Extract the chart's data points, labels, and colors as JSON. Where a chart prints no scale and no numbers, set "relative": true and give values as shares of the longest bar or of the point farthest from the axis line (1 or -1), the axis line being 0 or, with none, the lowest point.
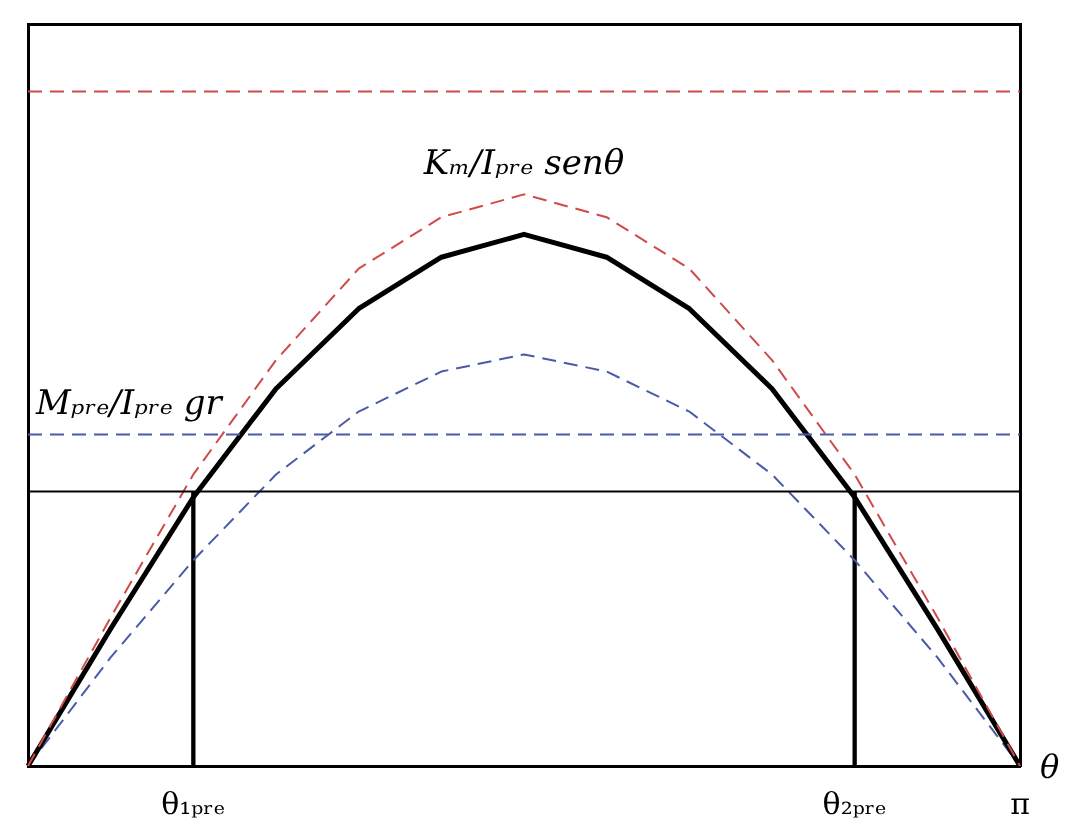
{
  "chart_data": {
    "type": "line",
    "relative": true,
    "xlabel": "θ",
    "categories": [
      null,
      null,
      "θ₁ₚᵣₑ",
      null,
      null,
      null,
      null,
      null,
      null,
      null,
      "θ₂ₚᵣₑ",
      null,
      "π"
    ],
    "series": [
      {
        "color": "#d04a4a",
        "line_style": "dashed",
        "values": [
          0,
          0.26,
          0.51,
          0.71,
          0.87,
          0.96,
          1,
          0.96,
          0.87,
          0.71,
          0.51,
          0.26,
          0
        ]
      },
      {
        "color": "#000000",
        "line_style": "solid",
        "values": [
          0,
          0.24,
          0.47,
          0.66,
          0.8,
          0.89,
          0.93,
          0.89,
          0.8,
          0.66,
          0.47,
          0.24,
          0
        ]
      },
      {
        "color": "#4a5aa8",
        "line_style": "dashed",
        "values": [
          0,
          0.19,
          0.36,
          0.51,
          0.62,
          0.69,
          0.72,
          0.69,
          0.62,
          0.51,
          0.36,
          0.19,
          0
        ]
      },
      {
        "type": "bar",
        "color": "#000000",
        "values": [
          null,
          null,
          0.48,
          null,
          null,
          null,
          null,
          null,
          null,
          null,
          0.48,
          null,
          null
        ]
      }
    ],
    "ref_lines": [
      {
        "axis": "y",
        "value": 1.18,
        "color": "#d04a4a",
        "line_style": "dashed"
      },
      {
        "axis": "y",
        "value": 0.58,
        "color": "#4a5aa8",
        "line_style": "dashed"
      },
      {
        "axis": "y",
        "value": 0.48,
        "color": "#000000",
        "line_style": "solid"
      }
    ],
    "annotations": [
      {
        "text": "Kₘ/Iₚᵣₑ senθ",
        "y": 1
      },
      {
        "text": "Mₚᵣₑ/Iₚᵣₑ gr",
        "y": 0.58
      }
    ],
    "marker": "none",
    "grid": false,
    "legend": false,
    "tick_labels": "x"
  }
}
